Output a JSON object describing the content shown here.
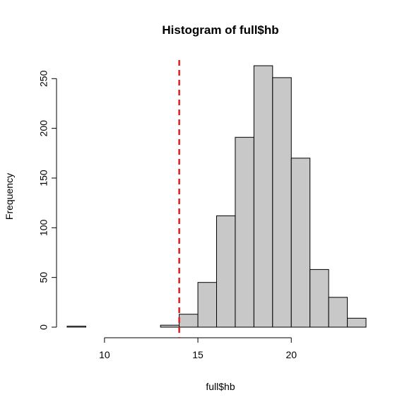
{
  "chart_data": {
    "type": "histogram",
    "title": "Histogram of full$hb",
    "xlabel": "full$hb",
    "ylabel": "Frequency",
    "bins": [
      8,
      9,
      10,
      11,
      12,
      13,
      14,
      15,
      16,
      17,
      18,
      19,
      20,
      21,
      22,
      23,
      24
    ],
    "counts": [
      1,
      0,
      0,
      0,
      0,
      2,
      13,
      45,
      112,
      191,
      263,
      251,
      170,
      58,
      30,
      9
    ],
    "x_ticks": [
      10,
      15,
      20
    ],
    "x_tick_labels": [
      "10",
      "15",
      "20"
    ],
    "y_ticks": [
      0,
      50,
      100,
      150,
      200,
      250
    ],
    "y_tick_labels": [
      "0",
      "50",
      "100",
      "150",
      "200",
      "250"
    ],
    "xlim": [
      8,
      24
    ],
    "ylim": [
      0,
      263
    ],
    "reference_line": {
      "x": 14,
      "color": "#e41a1c",
      "style": "dashed"
    }
  }
}
